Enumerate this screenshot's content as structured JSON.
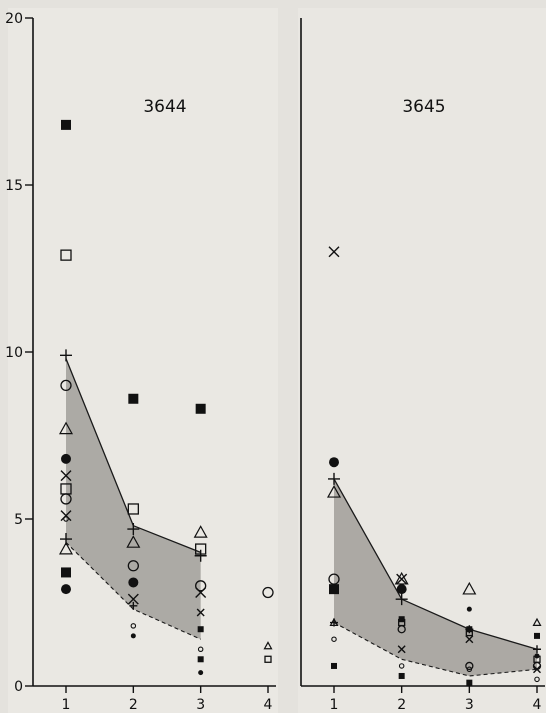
{
  "chart_data": [
    {
      "type": "scatter",
      "title": "3644",
      "xlabel": "",
      "ylabel": "",
      "x_ticks": [
        "1",
        "2",
        "3",
        "4"
      ],
      "y_ticks": [
        "0",
        "5",
        "10",
        "15",
        "20"
      ],
      "xlim": [
        0.55,
        4.35
      ],
      "ylim": [
        0,
        20
      ],
      "grid": false,
      "band": {
        "description": "shaded envelope between upper and lower series",
        "upper": [
          [
            1,
            9.8
          ],
          [
            2,
            4.8
          ],
          [
            3,
            4.0
          ]
        ],
        "lower": [
          [
            1,
            4.3
          ],
          [
            2,
            2.3
          ],
          [
            3,
            1.4
          ]
        ],
        "fill": "#9c9a95"
      },
      "series": [
        {
          "marker": "filled-square",
          "points": [
            [
              1,
              16.8
            ],
            [
              2,
              8.6
            ],
            [
              3,
              8.3
            ],
            [
              1,
              3.4
            ],
            [
              3,
              1.7
            ],
            [
              3,
              0.8
            ]
          ]
        },
        {
          "marker": "open-square",
          "points": [
            [
              1,
              12.9
            ],
            [
              2,
              5.3
            ],
            [
              3,
              4.1
            ],
            [
              1,
              5.9
            ],
            [
              4,
              0.8
            ]
          ]
        },
        {
          "marker": "plus",
          "points": [
            [
              1,
              9.9
            ],
            [
              2,
              4.7
            ],
            [
              3,
              3.9
            ],
            [
              1,
              4.4
            ],
            [
              2,
              2.4
            ]
          ]
        },
        {
          "marker": "open-circle",
          "points": [
            [
              1,
              9.0
            ],
            [
              2,
              3.6
            ],
            [
              3,
              3.0
            ],
            [
              4,
              2.8
            ],
            [
              1,
              5.6
            ]
          ]
        },
        {
          "marker": "open-triangle",
          "points": [
            [
              1,
              7.7
            ],
            [
              2,
              4.3
            ],
            [
              3,
              4.6
            ],
            [
              1,
              4.1
            ],
            [
              4,
              1.2
            ]
          ]
        },
        {
          "marker": "filled-circle",
          "points": [
            [
              1,
              6.8
            ],
            [
              2,
              3.1
            ],
            [
              3,
              0.4
            ],
            [
              1,
              2.9
            ],
            [
              2,
              1.5
            ]
          ]
        },
        {
          "marker": "cross",
          "points": [
            [
              1,
              6.3
            ],
            [
              2,
              2.6
            ],
            [
              3,
              2.2
            ],
            [
              1,
              5.1
            ],
            [
              3,
              2.8
            ]
          ]
        },
        {
          "marker": "small-open-circle",
          "points": [
            [
              1,
              5.0
            ],
            [
              2,
              1.8
            ],
            [
              3,
              1.1
            ]
          ]
        }
      ]
    },
    {
      "type": "scatter",
      "title": "3645",
      "xlabel": "",
      "ylabel": "",
      "x_ticks": [
        "1",
        "2",
        "3",
        "4"
      ],
      "xlim": [
        0.55,
        4.15
      ],
      "ylim": [
        0,
        20
      ],
      "grid": false,
      "band": {
        "description": "shaded envelope between upper and lower series",
        "upper": [
          [
            1,
            6.2
          ],
          [
            2,
            2.6
          ],
          [
            3,
            1.7
          ],
          [
            4,
            1.1
          ]
        ],
        "lower": [
          [
            1,
            1.9
          ],
          [
            2,
            0.8
          ],
          [
            3,
            0.3
          ],
          [
            4,
            0.5
          ]
        ],
        "fill": "#9c9a95"
      },
      "series": [
        {
          "marker": "filled-square",
          "points": [
            [
              1,
              2.9
            ],
            [
              2,
              2.0
            ],
            [
              3,
              1.7
            ],
            [
              4,
              1.5
            ],
            [
              1,
              0.6
            ],
            [
              2,
              0.3
            ],
            [
              3,
              0.1
            ]
          ]
        },
        {
          "marker": "open-square",
          "points": [
            [
              2,
              1.9
            ],
            [
              4,
              0.8
            ],
            [
              3,
              1.6
            ]
          ]
        },
        {
          "marker": "plus",
          "points": [
            [
              1,
              6.2
            ],
            [
              2,
              2.6
            ],
            [
              3,
              1.7
            ],
            [
              4,
              1.1
            ],
            [
              1,
              1.9
            ]
          ]
        },
        {
          "marker": "open-circle",
          "points": [
            [
              1,
              3.2
            ],
            [
              2,
              1.7
            ],
            [
              3,
              0.6
            ],
            [
              4,
              0.6
            ]
          ]
        },
        {
          "marker": "open-triangle",
          "points": [
            [
              1,
              5.8
            ],
            [
              2,
              3.2
            ],
            [
              3,
              2.9
            ],
            [
              4,
              1.9
            ],
            [
              1,
              1.9
            ]
          ]
        },
        {
          "marker": "filled-circle",
          "points": [
            [
              1,
              6.7
            ],
            [
              2,
              2.9
            ],
            [
              3,
              2.3
            ],
            [
              4,
              0.9
            ]
          ]
        },
        {
          "marker": "cross",
          "points": [
            [
              1,
              13.0
            ],
            [
              2,
              3.2
            ],
            [
              3,
              1.4
            ],
            [
              4,
              0.5
            ],
            [
              2,
              1.1
            ]
          ]
        },
        {
          "marker": "small-open-circle",
          "points": [
            [
              1,
              1.4
            ],
            [
              2,
              0.6
            ],
            [
              3,
              0.5
            ],
            [
              4,
              0.2
            ]
          ]
        }
      ]
    }
  ]
}
